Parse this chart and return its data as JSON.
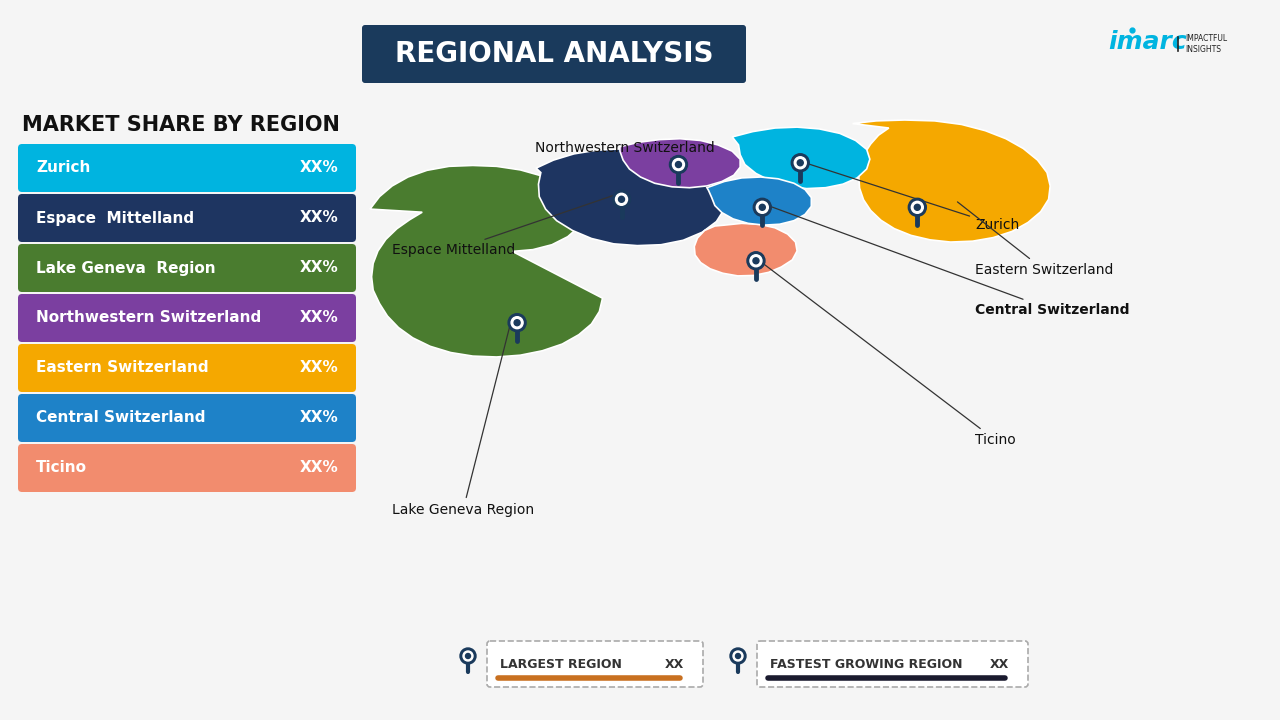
{
  "title": "REGIONAL ANALYSIS",
  "title_bg_color": "#1a3a5c",
  "title_text_color": "#ffffff",
  "background_color": "#f5f5f5",
  "subtitle": "MARKET SHARE BY REGION",
  "regions": [
    {
      "name": "Zurich",
      "color": "#00b4e0",
      "text_color": "#ffffff"
    },
    {
      "name": "Espace  Mittelland",
      "color": "#1e3561",
      "text_color": "#ffffff"
    },
    {
      "name": "Lake Geneva  Region",
      "color": "#4a7c2f",
      "text_color": "#ffffff"
    },
    {
      "name": "Northwestern Switzerland",
      "color": "#7b3fa0",
      "text_color": "#ffffff"
    },
    {
      "name": "Eastern Switzerland",
      "color": "#f5a800",
      "text_color": "#ffffff"
    },
    {
      "name": "Central Switzerland",
      "color": "#1e82c8",
      "text_color": "#ffffff"
    },
    {
      "name": "Ticino",
      "color": "#f28c6e",
      "text_color": "#ffffff"
    }
  ],
  "value_label": "XX%",
  "map_colors": {
    "lake_geneva": "#4a7c2f",
    "espace": "#1e3561",
    "nw_switz": "#7b3fa0",
    "zurich": "#00b4e0",
    "eastern": "#f5a800",
    "central": "#1e82c8",
    "ticino": "#f28c6e"
  },
  "legend_largest_color": "#c87020",
  "legend_fastest_color": "#1a1a2e",
  "imarc_cyan": "#00b4e0",
  "imarc_dark": "#222222",
  "map_label_color": "#111111",
  "leader_line_color": "#333333"
}
